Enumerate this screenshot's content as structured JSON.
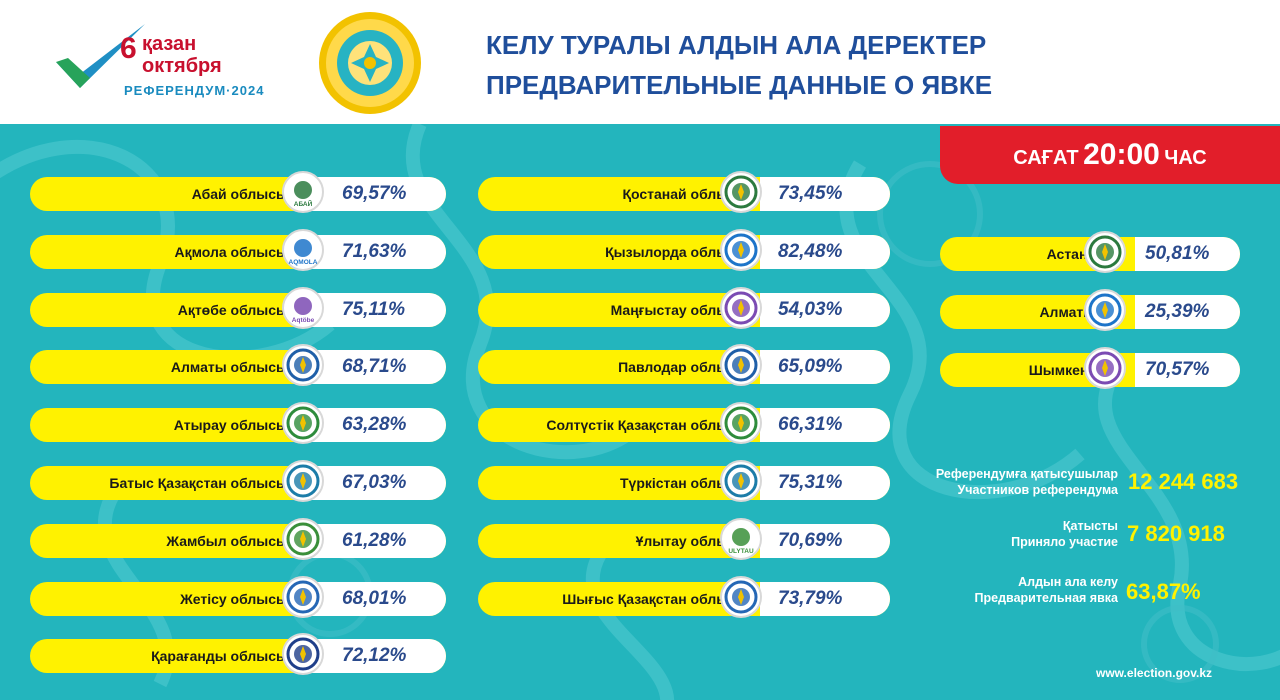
{
  "header": {
    "logo": {
      "day": "6",
      "month_kz": "қазан",
      "month_ru": "октября",
      "caption": "РЕФЕРЕНДУМ·2024"
    },
    "title_line1": "КЕЛУ ТУРАЛЫ АЛДЫН АЛА ДЕРЕКТЕР",
    "title_line2": "ПРЕДВАРИТЕЛЬНЫЕ ДАННЫЕ О ЯВКЕ"
  },
  "time_badge": {
    "prefix": "САҒАТ",
    "time": "20:00",
    "suffix": "ЧАС"
  },
  "regions_col1": [
    {
      "name": "Абай облысы",
      "pct": "69,57%",
      "emblem": "abai-emblem-icon",
      "emb_text": "АБАЙ"
    },
    {
      "name": "Ақмола облысы",
      "pct": "71,63%",
      "emblem": "akmola-emblem-icon",
      "emb_text": "AQMOLA"
    },
    {
      "name": "Ақтөбе облысы",
      "pct": "75,11%",
      "emblem": "aktobe-emblem-icon",
      "emb_text": "Aqtöbe"
    },
    {
      "name": "Алматы облысы",
      "pct": "68,71%",
      "emblem": "almaty-region-emblem-icon"
    },
    {
      "name": "Атырау облысы",
      "pct": "63,28%",
      "emblem": "atyrau-emblem-icon"
    },
    {
      "name": "Батыс Қазақстан облысы",
      "pct": "67,03%",
      "emblem": "west-kazakhstan-emblem-icon"
    },
    {
      "name": "Жамбыл облысы",
      "pct": "61,28%",
      "emblem": "zhambyl-emblem-icon"
    },
    {
      "name": "Жетісу облысы",
      "pct": "68,01%",
      "emblem": "zhetisu-emblem-icon"
    },
    {
      "name": "Қарағанды облысы",
      "pct": "72,12%",
      "emblem": "karaganda-emblem-icon"
    }
  ],
  "regions_col2": [
    {
      "name": "Қостанай облысы",
      "pct": "73,45%",
      "emblem": "kostanay-emblem-icon"
    },
    {
      "name": "Қызылорда облысы",
      "pct": "82,48%",
      "emblem": "kyzylorda-emblem-icon"
    },
    {
      "name": "Маңғыстау облысы",
      "pct": "54,03%",
      "emblem": "mangystau-emblem-icon"
    },
    {
      "name": "Павлодар облысы",
      "pct": "65,09%",
      "emblem": "pavlodar-emblem-icon"
    },
    {
      "name": "Солтүстік Қазақстан облысы",
      "pct": "66,31%",
      "emblem": "north-kazakhstan-emblem-icon"
    },
    {
      "name": "Түркістан облысы",
      "pct": "75,31%",
      "emblem": "turkistan-emblem-icon"
    },
    {
      "name": "Ұлытау облысы",
      "pct": "70,69%",
      "emblem": "ulytau-emblem-icon",
      "emb_text": "ULYTAU"
    },
    {
      "name": "Шығыс Қазақстан облысы",
      "pct": "73,79%",
      "emblem": "east-kazakhstan-emblem-icon"
    }
  ],
  "cities": [
    {
      "name": "Астана қ.",
      "pct": "50,81%",
      "emblem": "astana-emblem-icon"
    },
    {
      "name": "Алматы қ.",
      "pct": "25,39%",
      "emblem": "almaty-city-emblem-icon"
    },
    {
      "name": "Шымкент қ.",
      "pct": "70,57%",
      "emblem": "shymkent-emblem-icon"
    }
  ],
  "stats": {
    "participants": {
      "label_kz": "Референдумға қатысушылар",
      "label_ru": "Участников референдума",
      "value": "12 244 683"
    },
    "took_part": {
      "label_kz": "Қатысты",
      "label_ru": "Приняло участие",
      "value": "7 820 918"
    },
    "turnout": {
      "label_kz": "Алдын ала келу",
      "label_ru": "Предварительная явка",
      "value": "63,87%"
    }
  },
  "footer": "www.election.gov.kz",
  "colors": {
    "panel": "#23b5bd",
    "pill": "#fff200",
    "accent_red": "#e21e2a",
    "title_blue": "#1f4e9b",
    "pct_blue": "#2a4a8c"
  }
}
